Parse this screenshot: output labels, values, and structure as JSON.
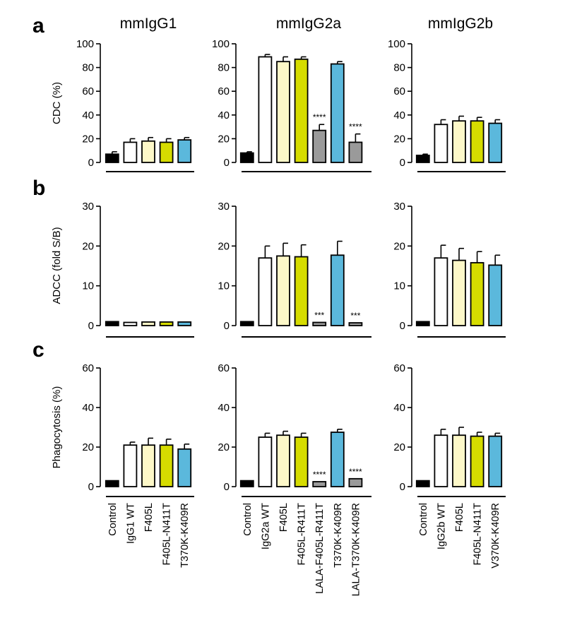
{
  "figure": {
    "panel_labels": [
      "a",
      "b",
      "c"
    ],
    "column_titles": [
      "mmIgG1",
      "mmIgG2a",
      "mmIgG2b"
    ],
    "colors": {
      "Control": "#000000",
      "WT": "#ffffff",
      "F405L": "#fdf8c8",
      "double": "#d6dc00",
      "triple": "#5bb8dc",
      "LALA": "#9a9a9a"
    }
  },
  "chart_data": [
    {
      "type": "bar",
      "panel": "a",
      "column": "mmIgG1",
      "title": "mmIgG1",
      "ylabel": "CDC (%)",
      "ylim": [
        0,
        100
      ],
      "yticks": [
        0,
        20,
        40,
        60,
        80,
        100
      ],
      "categories": [
        "Control",
        "IgG1 WT",
        "F405L",
        "F405L-N411T",
        "T370K-K409R"
      ],
      "color_keys": [
        "Control",
        "WT",
        "F405L",
        "double",
        "triple"
      ],
      "values": [
        7,
        17,
        18,
        17,
        19
      ],
      "errors": [
        2,
        3,
        3,
        3,
        2
      ],
      "significance": [
        "",
        "",
        "",
        "",
        ""
      ]
    },
    {
      "type": "bar",
      "panel": "a",
      "column": "mmIgG2a",
      "title": "mmIgG2a",
      "ylabel": "",
      "ylim": [
        0,
        100
      ],
      "yticks": [
        0,
        20,
        40,
        60,
        80,
        100
      ],
      "categories": [
        "Control",
        "IgG2a WT",
        "F405L",
        "F405L-R411T",
        "LALA-F405L-R411T",
        "T370K-K409R",
        "LALA-T370K-K409R"
      ],
      "color_keys": [
        "Control",
        "WT",
        "F405L",
        "double",
        "LALA",
        "triple",
        "LALA"
      ],
      "values": [
        8,
        89,
        85,
        87,
        27,
        83,
        17
      ],
      "errors": [
        1,
        2,
        4,
        2,
        5,
        2,
        7
      ],
      "significance": [
        "",
        "",
        "",
        "",
        "****",
        "",
        "****"
      ]
    },
    {
      "type": "bar",
      "panel": "a",
      "column": "mmIgG2b",
      "title": "mmIgG2b",
      "ylabel": "",
      "ylim": [
        0,
        100
      ],
      "yticks": [
        0,
        20,
        40,
        60,
        80,
        100
      ],
      "categories": [
        "Control",
        "IgG2b WT",
        "F405L",
        "F405L-N411T",
        "V370K-K409R"
      ],
      "color_keys": [
        "Control",
        "WT",
        "F405L",
        "double",
        "triple"
      ],
      "values": [
        6,
        32,
        35,
        35,
        33
      ],
      "errors": [
        1,
        4,
        4,
        3,
        3
      ],
      "significance": [
        "",
        "",
        "",
        "",
        ""
      ]
    },
    {
      "type": "bar",
      "panel": "b",
      "column": "mmIgG1",
      "ylabel": "ADCC (fold S/B)",
      "ylim": [
        0,
        30
      ],
      "yticks": [
        0,
        10,
        20,
        30
      ],
      "categories": [
        "Control",
        "IgG1 WT",
        "F405L",
        "F405L-N411T",
        "T370K-K409R"
      ],
      "color_keys": [
        "Control",
        "WT",
        "F405L",
        "double",
        "triple"
      ],
      "values": [
        1,
        0.8,
        0.9,
        0.9,
        0.9
      ],
      "errors": [
        0,
        0,
        0,
        0,
        0
      ],
      "significance": [
        "",
        "",
        "",
        "",
        ""
      ]
    },
    {
      "type": "bar",
      "panel": "b",
      "column": "mmIgG2a",
      "ylabel": "",
      "ylim": [
        0,
        30
      ],
      "yticks": [
        0,
        10,
        20,
        30
      ],
      "categories": [
        "Control",
        "IgG2a WT",
        "F405L",
        "F405L-R411T",
        "LALA-F405L-R411T",
        "T370K-K409R",
        "LALA-T370K-K409R"
      ],
      "color_keys": [
        "Control",
        "WT",
        "F405L",
        "double",
        "LALA",
        "triple",
        "LALA"
      ],
      "values": [
        1,
        17,
        17.5,
        17.3,
        0.8,
        17.7,
        0.7
      ],
      "errors": [
        0,
        3,
        3.2,
        3,
        0,
        3.5,
        0
      ],
      "significance": [
        "",
        "",
        "",
        "",
        "***",
        "",
        "***"
      ]
    },
    {
      "type": "bar",
      "panel": "b",
      "column": "mmIgG2b",
      "ylabel": "",
      "ylim": [
        0,
        30
      ],
      "yticks": [
        0,
        10,
        20,
        30
      ],
      "categories": [
        "Control",
        "IgG2b WT",
        "F405L",
        "F405L-N411T",
        "V370K-K409R"
      ],
      "color_keys": [
        "Control",
        "WT",
        "F405L",
        "double",
        "triple"
      ],
      "values": [
        1,
        17,
        16.4,
        15.8,
        15.2
      ],
      "errors": [
        0,
        3.2,
        3,
        2.8,
        2.5
      ],
      "significance": [
        "",
        "",
        "",
        "",
        ""
      ]
    },
    {
      "type": "bar",
      "panel": "c",
      "column": "mmIgG1",
      "ylabel": "Phagocytosis (%)",
      "ylim": [
        0,
        60
      ],
      "yticks": [
        0,
        20,
        40,
        60
      ],
      "categories": [
        "Control",
        "IgG1 WT",
        "F405L",
        "F405L-N411T",
        "T370K-K409R"
      ],
      "color_keys": [
        "Control",
        "WT",
        "F405L",
        "double",
        "triple"
      ],
      "values": [
        3,
        21,
        21,
        21,
        19
      ],
      "errors": [
        0,
        1.5,
        3.5,
        3,
        2.5
      ],
      "significance": [
        "",
        "",
        "",
        "",
        ""
      ]
    },
    {
      "type": "bar",
      "panel": "c",
      "column": "mmIgG2a",
      "ylabel": "",
      "ylim": [
        0,
        60
      ],
      "yticks": [
        0,
        20,
        40,
        60
      ],
      "categories": [
        "Control",
        "IgG2a WT",
        "F405L",
        "F405L-R411T",
        "LALA-F405L-R411T",
        "T370K-K409R",
        "LALA-T370K-K409R"
      ],
      "color_keys": [
        "Control",
        "WT",
        "F405L",
        "double",
        "LALA",
        "triple",
        "LALA"
      ],
      "values": [
        3,
        25,
        26,
        25,
        2.5,
        27.5,
        4
      ],
      "errors": [
        0,
        2,
        2,
        2,
        0,
        1.5,
        0
      ],
      "significance": [
        "",
        "",
        "",
        "",
        "****",
        "",
        "****"
      ]
    },
    {
      "type": "bar",
      "panel": "c",
      "column": "mmIgG2b",
      "ylabel": "",
      "ylim": [
        0,
        60
      ],
      "yticks": [
        0,
        20,
        40,
        60
      ],
      "categories": [
        "Control",
        "IgG2b WT",
        "F405L",
        "F405L-N411T",
        "V370K-K409R"
      ],
      "color_keys": [
        "Control",
        "WT",
        "F405L",
        "double",
        "triple"
      ],
      "values": [
        3,
        26,
        26,
        25.5,
        25.5
      ],
      "errors": [
        0,
        3,
        4,
        2,
        1.5
      ],
      "significance": [
        "",
        "",
        "",
        "",
        ""
      ]
    }
  ]
}
